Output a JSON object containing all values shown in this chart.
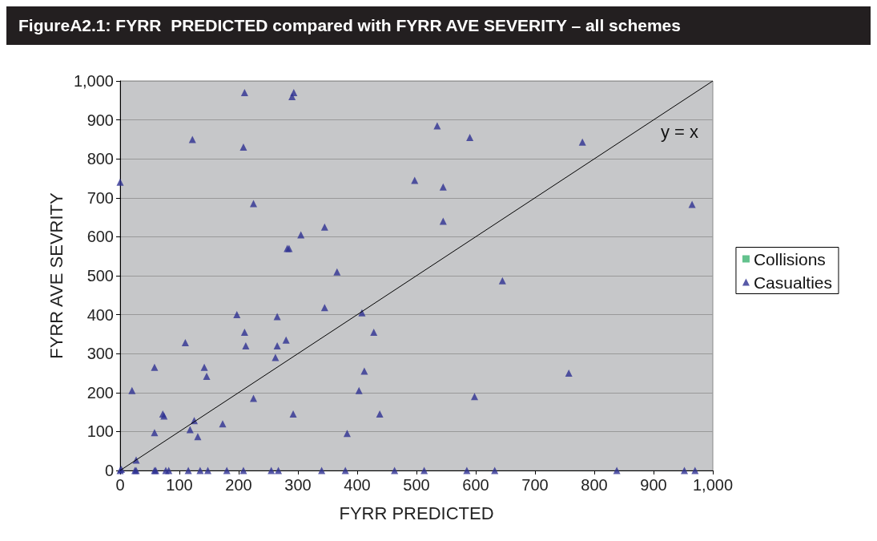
{
  "chart_data": {
    "type": "scatter",
    "title": "FigureA2.1: FYRR  PREDICTED compared with FYRR AVE SEVERITY – all schemes",
    "xlabel": "FYRR PREDICTED",
    "ylabel": "FYRR AVE SEVRITY",
    "xlim": [
      0,
      1000
    ],
    "xticks": [
      0,
      100,
      200,
      300,
      400,
      500,
      600,
      700,
      800,
      900,
      {
        "value": 1000,
        "label": "1,000"
      }
    ],
    "ylim": [
      0,
      1000
    ],
    "yticks": [
      0,
      100,
      200,
      300,
      400,
      500,
      600,
      700,
      800,
      900,
      {
        "value": 1000,
        "label": "1,000"
      }
    ],
    "grid": "y",
    "legend": "right",
    "marker": "triangle",
    "annotations": [
      "y = x"
    ],
    "series": [
      {
        "name": "Collisions",
        "color": "#3cb371",
        "marker": "square"
      },
      {
        "name": "Casualties",
        "color": "#2e3192",
        "x": [
          0,
          210,
          290,
          293,
          122,
          208,
          225,
          305,
          285,
          282,
          345,
          366,
          265,
          197,
          210,
          212,
          265,
          262,
          280,
          345,
          408,
          428,
          412,
          403,
          438,
          383,
          292,
          225,
          110,
          58,
          142,
          146,
          20,
          72,
          74,
          173,
          125,
          118,
          131,
          58,
          27,
          2,
          535,
          590,
          780,
          497,
          545,
          545,
          645,
          598,
          757,
          965,
          0,
          25,
          27,
          58,
          60,
          77,
          82,
          115,
          135,
          148,
          180,
          208,
          255,
          267,
          340,
          380,
          463,
          513,
          585,
          632,
          838,
          952,
          970
        ],
        "values": [
          740,
          970,
          960,
          970,
          850,
          830,
          685,
          605,
          570,
          570,
          625,
          510,
          395,
          400,
          355,
          320,
          320,
          290,
          335,
          418,
          405,
          355,
          255,
          205,
          145,
          95,
          145,
          185,
          328,
          265,
          265,
          242,
          205,
          145,
          140,
          120,
          128,
          105,
          87,
          97,
          27,
          3,
          885,
          855,
          843,
          745,
          728,
          640,
          487,
          190,
          250,
          683,
          0,
          0,
          0,
          0,
          0,
          0,
          0,
          0,
          0,
          0,
          0,
          0,
          0,
          0,
          0,
          0,
          0,
          0,
          0,
          0,
          0,
          0,
          0
        ]
      },
      {
        "type": "line",
        "color": "#000000",
        "x": [
          0,
          1000
        ],
        "values": [
          0,
          1000
        ],
        "marker": "none"
      }
    ]
  }
}
